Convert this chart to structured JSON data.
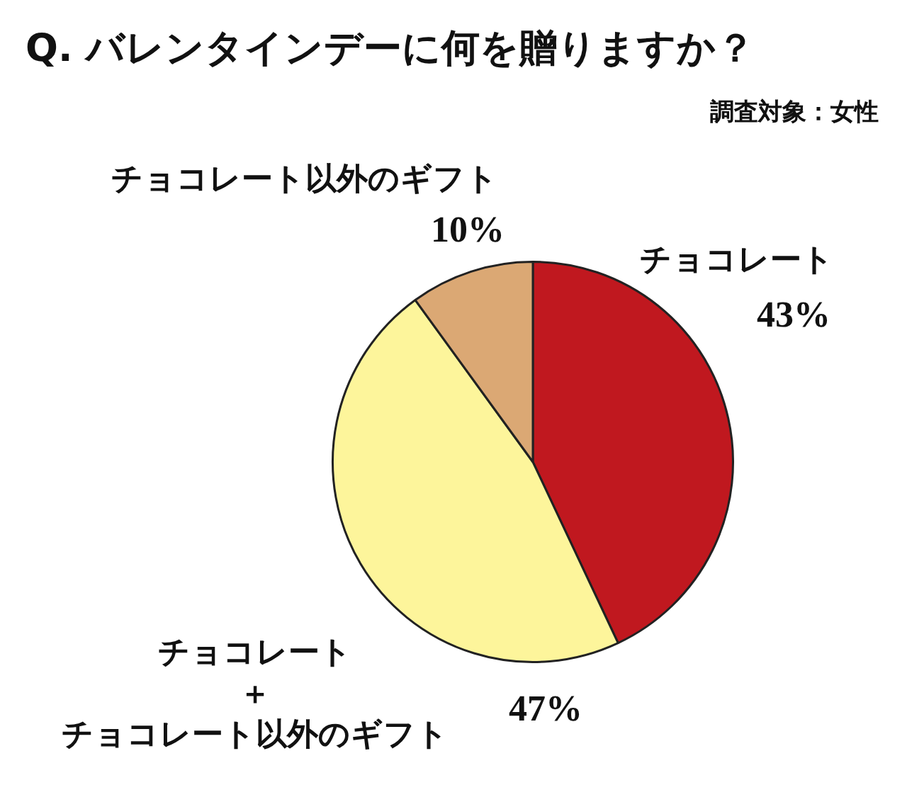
{
  "chart_data": {
    "type": "pie",
    "title": "Q. バレンタインデーに何を贈りますか？",
    "subtitle": "調査対象：女性",
    "categories": [
      "チョコレート",
      "チョコレート＋チョコレート以外のギフト",
      "チョコレート以外のギフト"
    ],
    "values": [
      43,
      47,
      10
    ],
    "colors": [
      "#c0181f",
      "#fdf59b",
      "#dba874"
    ],
    "value_labels": [
      "43%",
      "47%",
      "10%"
    ],
    "legend": false
  }
}
